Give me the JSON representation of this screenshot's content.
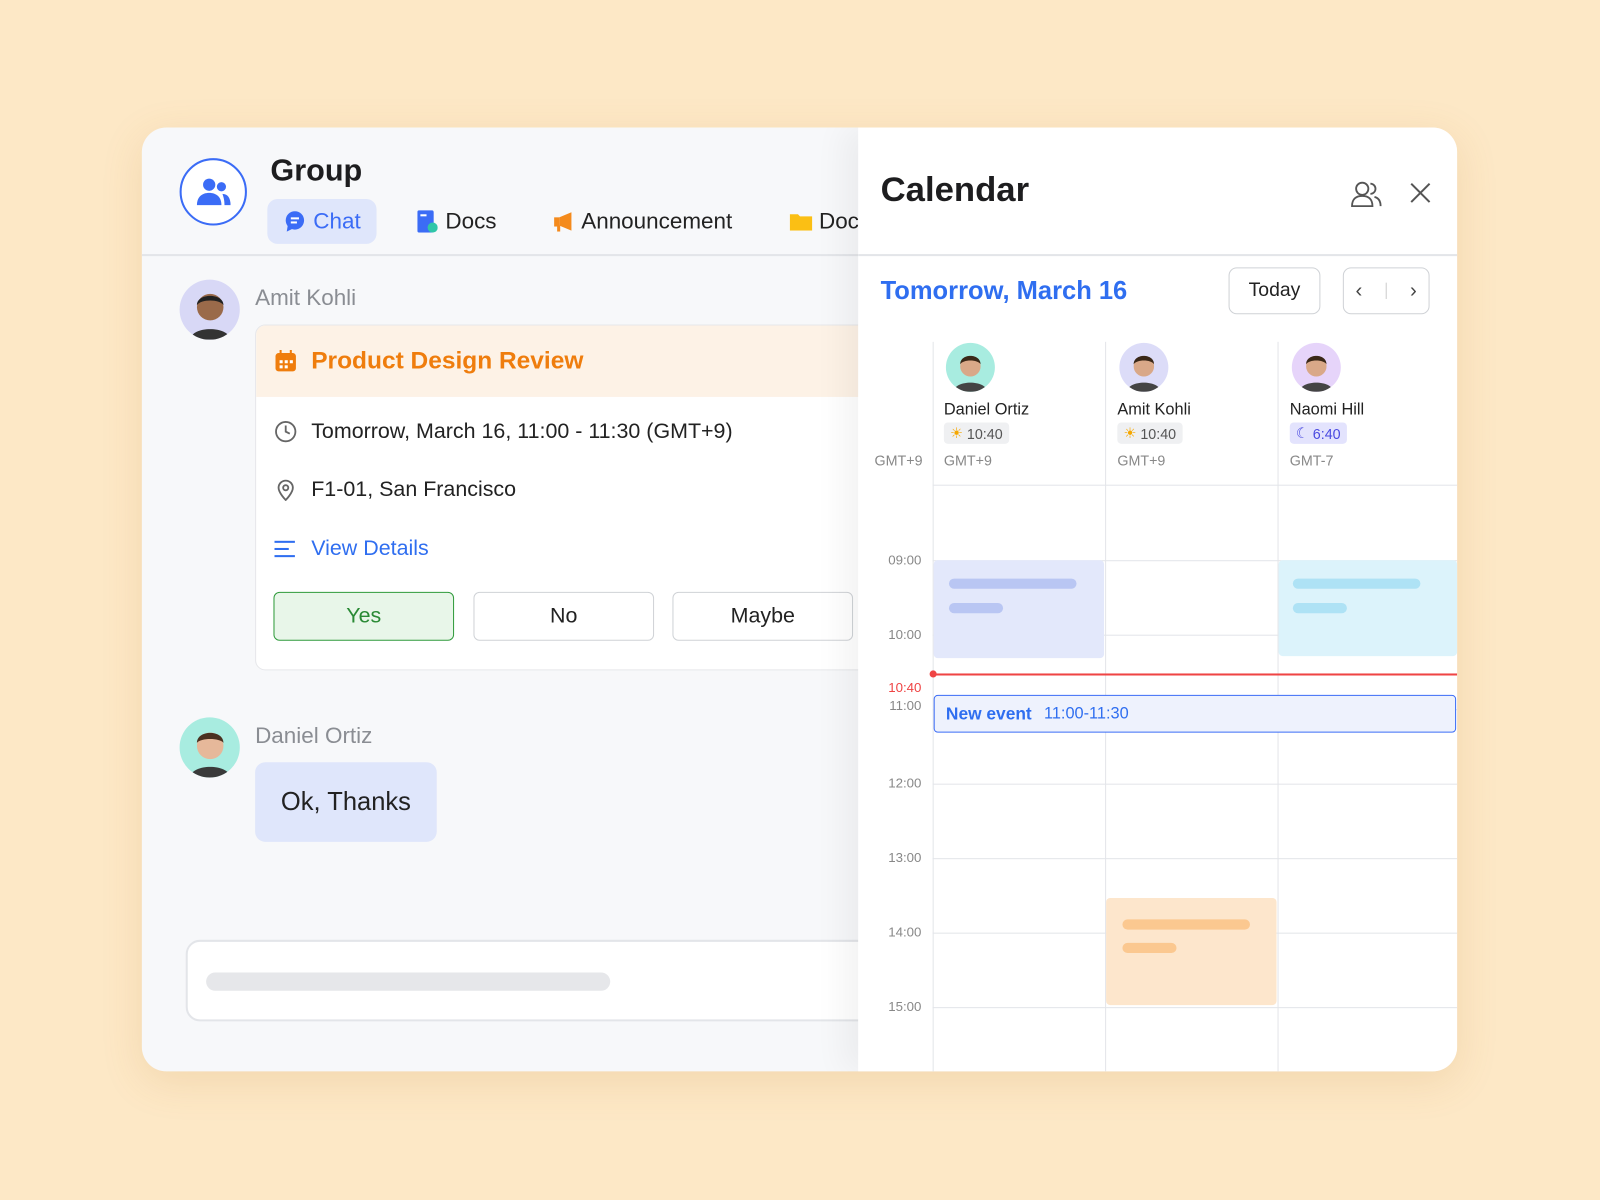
{
  "header": {
    "title": "Group",
    "group_icon": "users-icon",
    "tabs": [
      {
        "label": "Chat",
        "icon": "chat-bubble-icon",
        "active": true
      },
      {
        "label": "Docs",
        "icon": "doc-icon"
      },
      {
        "label": "Announcement",
        "icon": "megaphone-icon"
      },
      {
        "label": "Docume",
        "icon": "folder-icon"
      }
    ]
  },
  "messages": [
    {
      "sender": "Amit Kohli",
      "event": {
        "title": "Product Design Review",
        "time": "Tomorrow, March 16, 11:00 - 11:30 (GMT+9)",
        "location": "F1-01, San Francisco",
        "details_link": "View Details",
        "rsvp": {
          "yes": "Yes",
          "no": "No",
          "maybe": "Maybe",
          "selected": "Yes"
        }
      }
    },
    {
      "sender": "Daniel Ortiz",
      "text": "Ok, Thanks"
    }
  ],
  "calendar": {
    "title": "Calendar",
    "date": "Tomorrow, March 16",
    "today_label": "Today",
    "base_tz": "GMT+9",
    "people": [
      {
        "name": "Daniel Ortiz",
        "local_time": "10:40",
        "tz": "GMT+9",
        "daytime": true,
        "avatar_bg": "#a8ece0"
      },
      {
        "name": "Amit Kohli",
        "local_time": "10:40",
        "tz": "GMT+9",
        "daytime": true,
        "avatar_bg": "#dcdcf8"
      },
      {
        "name": "Naomi Hill",
        "local_time": "6:40",
        "tz": "GMT-7",
        "daytime": false,
        "avatar_bg": "#e6d4fa"
      }
    ],
    "hours": [
      "09:00",
      "10:00",
      "11:00",
      "12:00",
      "13:00",
      "14:00",
      "15:00"
    ],
    "now": "10:40",
    "new_event": {
      "label": "New event",
      "time": "11:00-11:30"
    },
    "colors": {
      "accent": "#2f6ef0",
      "now_line": "#ef4444",
      "event_orange": "#ef7d0d"
    }
  }
}
